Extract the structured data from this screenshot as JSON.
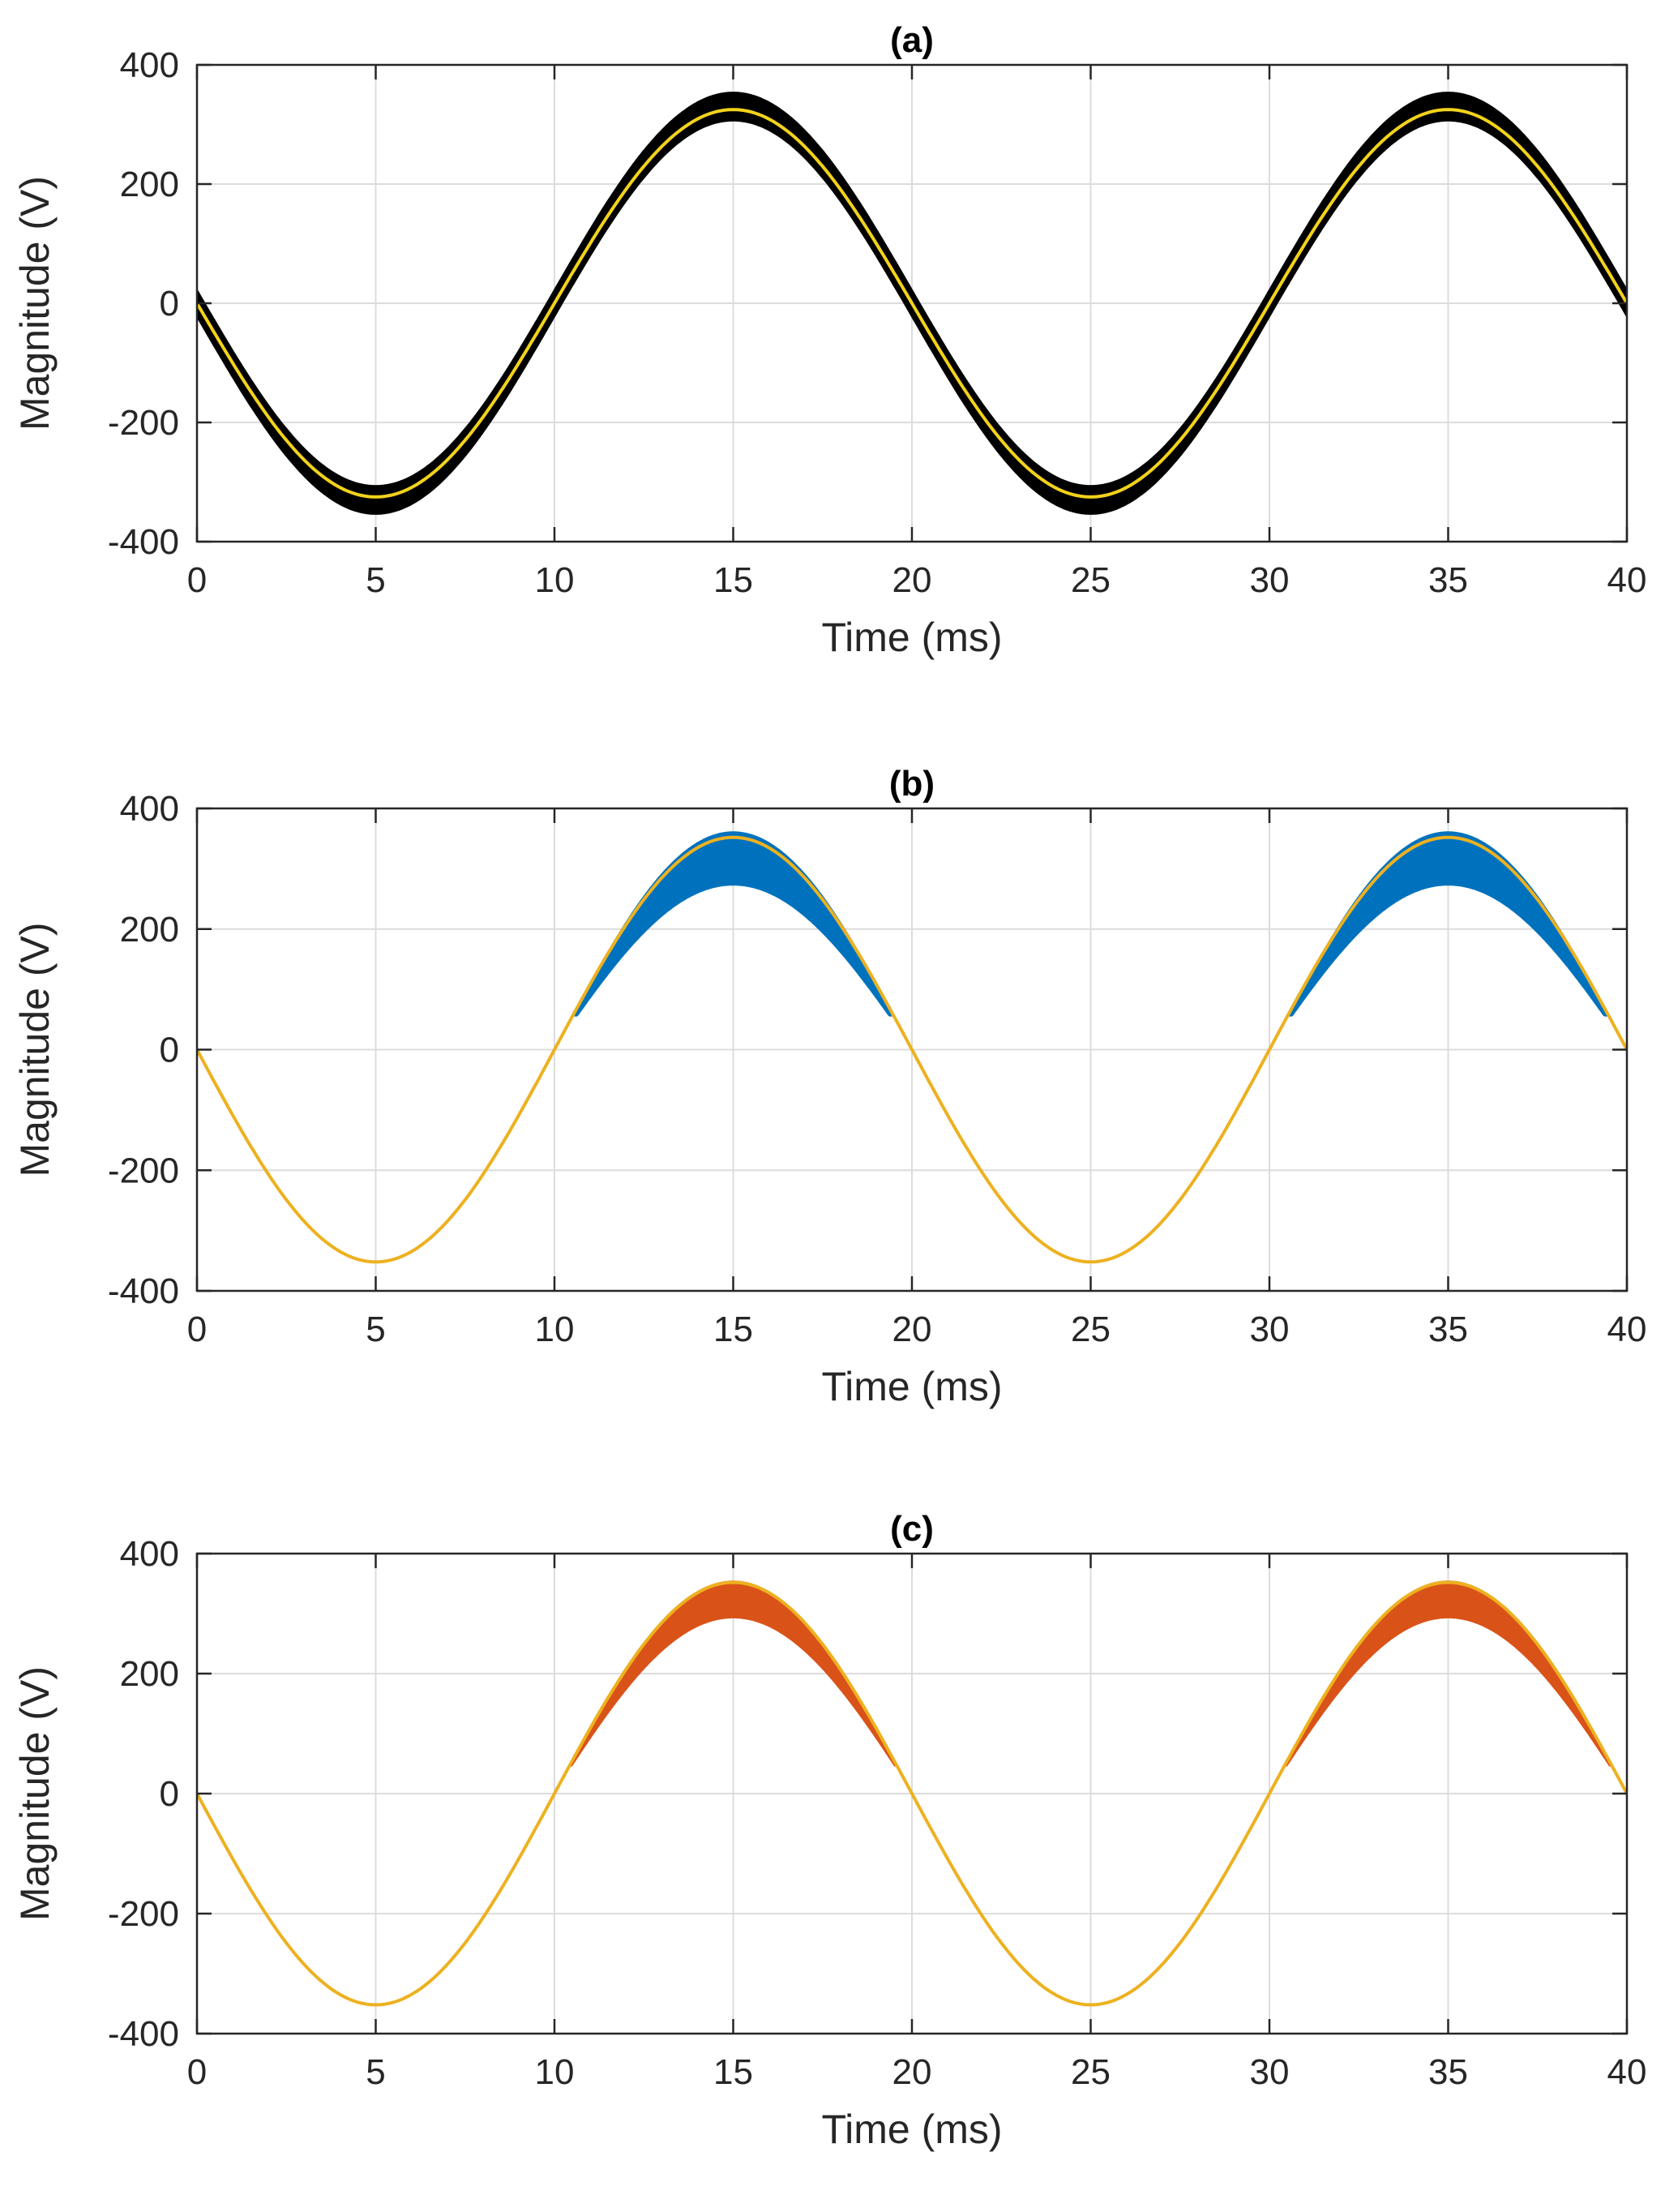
{
  "chart_data": [
    {
      "type": "line",
      "title": "(a)",
      "xlabel": "Time (ms)",
      "ylabel": "Magnitude (V)",
      "xlim": [
        0,
        40
      ],
      "ylim": [
        -400,
        400
      ],
      "x_ticks": [
        0,
        5,
        10,
        15,
        20,
        25,
        30,
        35,
        40
      ],
      "y_ticks": [
        400,
        200,
        0,
        -200,
        -400
      ],
      "grid": true,
      "series": [
        {
          "name": "noisy waveform (black band)",
          "color": "#000000",
          "function": "sine",
          "amplitude": 330,
          "period_ms": 20,
          "phase_sign": -1,
          "band_halfwidth": 25,
          "band_region": "all"
        },
        {
          "name": "reference waveform",
          "color": "#f2d21b",
          "function": "sine",
          "amplitude": 325,
          "period_ms": 20,
          "phase_sign": -1
        }
      ]
    },
    {
      "type": "line",
      "title": "(b)",
      "xlabel": "Time (ms)",
      "ylabel": "Magnitude (V)",
      "xlim": [
        0,
        40
      ],
      "ylim": [
        -400,
        400
      ],
      "x_ticks": [
        0,
        5,
        10,
        15,
        20,
        25,
        30,
        35,
        40
      ],
      "y_ticks": [
        400,
        200,
        0,
        -200,
        -400
      ],
      "grid": true,
      "series": [
        {
          "name": "distorted waveform (blue band)",
          "color": "#0072bd",
          "function": "sine",
          "amplitude": 355,
          "period_ms": 20,
          "phase_sign": -1,
          "band_upper_peak": 362,
          "band_lower_peak": 272,
          "band_region": "positive",
          "band_start_value": 55
        },
        {
          "name": "reference waveform",
          "color": "#edb120",
          "function": "sine",
          "amplitude": 352,
          "period_ms": 20,
          "phase_sign": -1
        }
      ]
    },
    {
      "type": "line",
      "title": "(c)",
      "xlabel": "Time (ms)",
      "ylabel": "Magnitude (V)",
      "xlim": [
        0,
        40
      ],
      "ylim": [
        -400,
        400
      ],
      "x_ticks": [
        0,
        5,
        10,
        15,
        20,
        25,
        30,
        35,
        40
      ],
      "y_ticks": [
        400,
        200,
        0,
        -200,
        -400
      ],
      "grid": true,
      "series": [
        {
          "name": "distorted waveform (orange band)",
          "color": "#d95319",
          "function": "sine",
          "amplitude": 355,
          "period_ms": 20,
          "phase_sign": -1,
          "band_upper_peak": 355,
          "band_lower_peak": 292,
          "band_region": "positive",
          "band_start_value": 45
        },
        {
          "name": "reference waveform",
          "color": "#edb120",
          "function": "sine",
          "amplitude": 352,
          "period_ms": 20,
          "phase_sign": -1
        }
      ]
    }
  ]
}
